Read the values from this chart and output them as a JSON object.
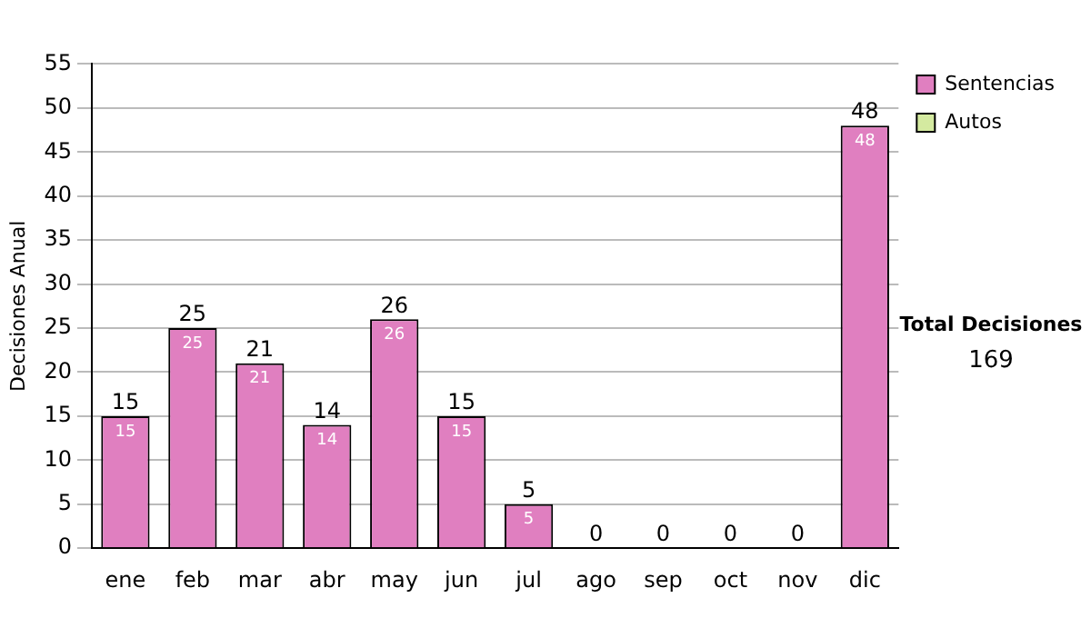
{
  "chart_data": {
    "type": "bar",
    "stacked": true,
    "ylabel": "Decisiones Anual",
    "categories": [
      "ene",
      "feb",
      "mar",
      "abr",
      "may",
      "jun",
      "jul",
      "ago",
      "sep",
      "oct",
      "nov",
      "dic"
    ],
    "series": [
      {
        "name": "Sentencias",
        "color": "#e07fc0",
        "values": [
          15,
          25,
          21,
          14,
          26,
          15,
          5,
          0,
          0,
          0,
          0,
          48
        ],
        "value_labels": [
          "15",
          "25",
          "21",
          "14",
          "26",
          "15",
          "5",
          null,
          null,
          null,
          null,
          "48"
        ]
      },
      {
        "name": "Autos",
        "color": "#d4eaa0",
        "values": [
          0,
          0,
          0,
          0,
          0,
          0,
          0,
          0,
          0,
          0,
          0,
          0
        ]
      }
    ],
    "totals": [
      "15",
      "25",
      "21",
      "14",
      "26",
      "15",
      "5",
      "0",
      "0",
      "0",
      "0",
      "48"
    ],
    "ylim": [
      0,
      55
    ],
    "yticks": [
      0,
      5,
      10,
      15,
      20,
      25,
      30,
      35,
      40,
      45,
      50,
      55
    ],
    "grid": "y",
    "legend": "right",
    "annotations": [
      "Total Decisiones",
      "169"
    ]
  }
}
